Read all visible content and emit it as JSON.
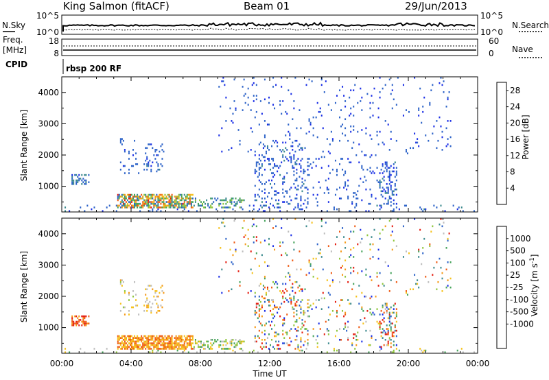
{
  "header": {
    "station": "King Salmon (fitACF)",
    "beam": "Beam 01",
    "date": "29/Jun/2013"
  },
  "panels": {
    "nsky_label": "N.Sky",
    "nsearch_label": "N.Search",
    "nsky_ticks": [
      "10^5",
      "10^0"
    ],
    "nsearch_ticks": [
      "10^5",
      "10^0"
    ],
    "freq_label": "Freq.",
    "freq_unit": "[MHz]",
    "freq_ticks": [
      "18",
      "8"
    ],
    "nave_label": "Nave",
    "nave_ticks": [
      "60",
      "0"
    ],
    "cpid_label": "CPID",
    "cpid_value": "rbsp 200 RF"
  },
  "chart_data": [
    {
      "type": "heatmap",
      "name": "power",
      "ylabel": "Slant Range [km]",
      "colorbar_label": "Power [dB]",
      "x_ticks": [
        "00:00",
        "04:00",
        "08:00",
        "12:00",
        "16:00",
        "20:00",
        "00:00"
      ],
      "xlim": [
        0,
        24
      ],
      "ylim": [
        180,
        4500
      ],
      "y_ticks": [
        1000,
        2000,
        3000,
        4000
      ],
      "colorbar_ticks": [
        "4",
        "8",
        "12",
        "16",
        "20",
        "24",
        "28"
      ],
      "colorbar_range": [
        0,
        30
      ],
      "colors": [
        "#1a2ee6",
        "#2d63c8",
        "#3b8a8e",
        "#45a35a",
        "#8fc63c",
        "#f5c21c",
        "#f59a18",
        "#ef5b14",
        "#e51d10"
      ],
      "regions": [
        {
          "t0": 0.0,
          "t1": 24.0,
          "r0": 180,
          "r1": 420,
          "density": 0.1,
          "vmin": 2,
          "vmax": 7
        },
        {
          "t0": 0.6,
          "t1": 1.6,
          "r0": 1050,
          "r1": 1400,
          "density": 0.4,
          "vmin": 3,
          "vmax": 9
        },
        {
          "t0": 3.2,
          "t1": 7.6,
          "r0": 280,
          "r1": 760,
          "density": 0.65,
          "vmin": 4,
          "vmax": 28
        },
        {
          "t0": 7.6,
          "t1": 10.6,
          "r0": 280,
          "r1": 640,
          "density": 0.3,
          "vmin": 4,
          "vmax": 16
        },
        {
          "t0": 4.7,
          "t1": 5.9,
          "r0": 1450,
          "r1": 2350,
          "density": 0.2,
          "vmin": 3,
          "vmax": 7
        },
        {
          "t0": 3.4,
          "t1": 4.5,
          "r0": 1400,
          "r1": 2600,
          "density": 0.08,
          "vmin": 3,
          "vmax": 6
        },
        {
          "t0": 11.1,
          "t1": 14.3,
          "r0": 300,
          "r1": 2400,
          "density": 0.16,
          "vmin": 2,
          "vmax": 7
        },
        {
          "t0": 14.3,
          "t1": 18.3,
          "r0": 300,
          "r1": 2000,
          "density": 0.07,
          "vmin": 2,
          "vmax": 6
        },
        {
          "t0": 18.3,
          "t1": 19.4,
          "r0": 300,
          "r1": 1800,
          "density": 0.24,
          "vmin": 2,
          "vmax": 7
        },
        {
          "t0": 9.0,
          "t1": 22.5,
          "r0": 2000,
          "r1": 4500,
          "density": 0.03,
          "vmin": 2,
          "vmax": 6
        }
      ]
    },
    {
      "type": "heatmap",
      "name": "velocity",
      "ylabel": "Slant Range [km]",
      "xlabel": "Time UT",
      "colorbar_label": "Velocity [m s^-1]",
      "x_ticks": [
        "00:00",
        "04:00",
        "08:00",
        "12:00",
        "16:00",
        "20:00",
        "00:00"
      ],
      "xlim": [
        0,
        24
      ],
      "ylim": [
        180,
        4500
      ],
      "y_ticks": [
        1000,
        2000,
        3000,
        4000
      ],
      "colorbar_ticks": [
        "1000",
        "500",
        "100",
        "25",
        "-25",
        "-100",
        "-500",
        "-1000"
      ],
      "colors": [
        "#1a2ee6",
        "#2d63c8",
        "#3b8a8e",
        "#45a35a",
        "#8fc63c",
        "#bdbdbd",
        "#f5c21c",
        "#f59a18",
        "#ef5b14",
        "#e51d10"
      ],
      "regions": [
        {
          "t0": 0.0,
          "t1": 24.0,
          "r0": 180,
          "r1": 380,
          "density": 0.08,
          "vmin": 3,
          "vmax": 6
        },
        {
          "t0": 0.6,
          "t1": 1.6,
          "r0": 1050,
          "r1": 1400,
          "density": 0.5,
          "vmin": 7,
          "vmax": 9
        },
        {
          "t0": 3.2,
          "t1": 7.6,
          "r0": 280,
          "r1": 760,
          "density": 0.7,
          "vmin": 6,
          "vmax": 8
        },
        {
          "t0": 7.6,
          "t1": 10.6,
          "r0": 280,
          "r1": 640,
          "density": 0.35,
          "vmin": 3,
          "vmax": 6
        },
        {
          "t0": 4.7,
          "t1": 5.9,
          "r0": 1450,
          "r1": 2350,
          "density": 0.2,
          "vmin": 5,
          "vmax": 7
        },
        {
          "t0": 3.4,
          "t1": 4.5,
          "r0": 1400,
          "r1": 2600,
          "density": 0.08,
          "vmin": 4,
          "vmax": 7
        },
        {
          "t0": 11.1,
          "t1": 14.3,
          "r0": 300,
          "r1": 2400,
          "density": 0.16,
          "vmin": 0,
          "vmax": 9
        },
        {
          "t0": 14.3,
          "t1": 18.3,
          "r0": 300,
          "r1": 2000,
          "density": 0.07,
          "vmin": 0,
          "vmax": 9
        },
        {
          "t0": 18.3,
          "t1": 19.4,
          "r0": 300,
          "r1": 1800,
          "density": 0.24,
          "vmin": 0,
          "vmax": 9
        },
        {
          "t0": 9.0,
          "t1": 22.5,
          "r0": 2000,
          "r1": 4500,
          "density": 0.03,
          "vmin": 0,
          "vmax": 9
        }
      ]
    }
  ]
}
